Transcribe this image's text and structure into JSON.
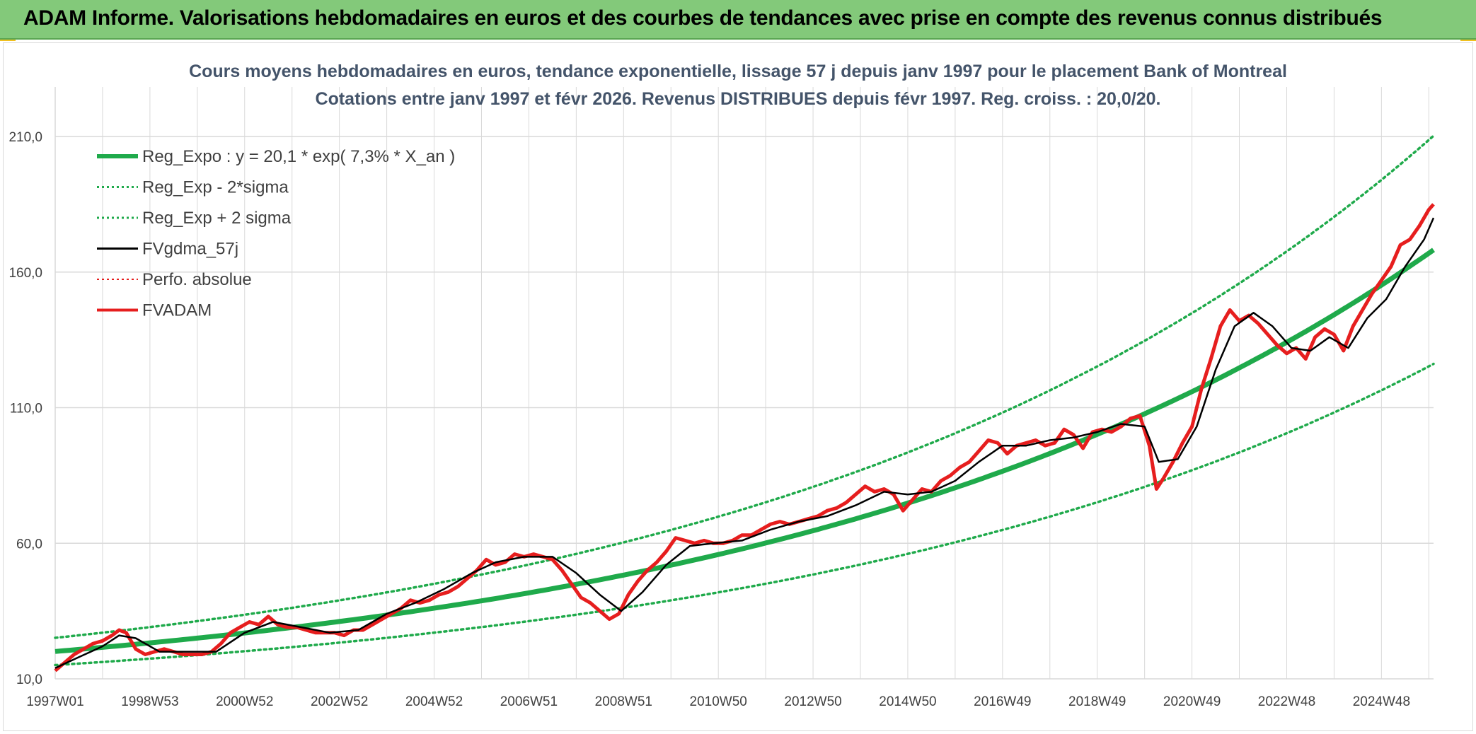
{
  "header": {
    "title": "ADAM Informe. Valorisations hebdomadaires en euros et des courbes de tendances avec prise en compte des revenus connus distribués"
  },
  "chart_data": {
    "type": "line",
    "title": "Cours moyens hebdomadaires en euros, tendance exponentielle, lissage 57 j depuis janv 1997 pour le placement Bank of Montreal",
    "subtitle": "Cotations entre janv 1997 et févr 2026. Revenus DISTRIBUES depuis févr 1997. Reg. croiss. : 20,0/20.",
    "xlabel": "",
    "ylabel": "",
    "ylim": [
      10,
      210
    ],
    "xlim": [
      1997.0,
      2026.1
    ],
    "grid": true,
    "legend_placement": "top-left",
    "y_ticks": [
      "10,0",
      "60,0",
      "110,0",
      "160,0",
      "210,0"
    ],
    "y_tick_values": [
      10,
      60,
      110,
      160,
      210
    ],
    "x_ticks": [
      "1997W01",
      "1998W53",
      "2000W52",
      "2002W52",
      "2004W52",
      "2006W51",
      "2008W51",
      "2010W50",
      "2012W50",
      "2014W50",
      "2016W49",
      "2018W49",
      "2020W49",
      "2022W48",
      "2024W48"
    ],
    "x_tick_years": [
      1997.0,
      1999.0,
      2001.0,
      2003.0,
      2005.0,
      2007.0,
      2009.0,
      2011.0,
      2013.0,
      2015.0,
      2017.0,
      2019.0,
      2021.0,
      2023.0,
      2025.0
    ],
    "colors": {
      "reg_expo": "#1faa4b",
      "sigma": "#1faa4b",
      "fvgdma": "#000000",
      "perfo": "#e61e1e",
      "fvadam": "#e61e1e",
      "grid": "#d9d9d9",
      "title": "#44546a"
    },
    "regression": {
      "a": 20.1,
      "rate": 0.073,
      "sigma_factor": 0.25
    },
    "legend": [
      {
        "label": "Reg_Expo : y = 20,1 * exp( 7,3% *  X_an )",
        "color": "#1faa4b",
        "style": "solid",
        "width": 6
      },
      {
        "label": "Reg_Exp - 2*sigma",
        "color": "#1faa4b",
        "style": "dotted",
        "width": 3
      },
      {
        "label": "Reg_Exp + 2 sigma",
        "color": "#1faa4b",
        "style": "dotted",
        "width": 3
      },
      {
        "label": "FVgdma_57j",
        "color": "#000000",
        "style": "solid",
        "width": 3
      },
      {
        "label": "Perfo. absolue",
        "color": "#e61e1e",
        "style": "dotted",
        "width": 2
      },
      {
        "label": "FVADAM",
        "color": "#e61e1e",
        "style": "solid",
        "width": 4
      }
    ],
    "series": [
      {
        "name": "FVADAM",
        "x": [
          1997.0,
          1997.2,
          1997.4,
          1997.6,
          1997.8,
          1998.0,
          1998.2,
          1998.35,
          1998.5,
          1998.7,
          1998.9,
          1999.1,
          1999.3,
          1999.5,
          1999.7,
          1999.9,
          2000.1,
          2000.3,
          2000.5,
          2000.7,
          2000.9,
          2001.1,
          2001.3,
          2001.5,
          2001.7,
          2001.9,
          2002.1,
          2002.3,
          2002.5,
          2002.7,
          2002.9,
          2003.1,
          2003.3,
          2003.5,
          2003.7,
          2003.9,
          2004.1,
          2004.3,
          2004.5,
          2004.7,
          2004.9,
          2005.1,
          2005.3,
          2005.5,
          2005.7,
          2005.9,
          2006.1,
          2006.3,
          2006.5,
          2006.7,
          2006.9,
          2007.1,
          2007.3,
          2007.5,
          2007.7,
          2007.9,
          2008.1,
          2008.3,
          2008.5,
          2008.7,
          2008.9,
          2009.1,
          2009.3,
          2009.5,
          2009.7,
          2009.9,
          2010.1,
          2010.3,
          2010.5,
          2010.7,
          2010.9,
          2011.1,
          2011.3,
          2011.5,
          2011.7,
          2011.9,
          2012.1,
          2012.3,
          2012.5,
          2012.7,
          2012.9,
          2013.1,
          2013.3,
          2013.5,
          2013.7,
          2013.9,
          2014.1,
          2014.3,
          2014.5,
          2014.7,
          2014.9,
          2015.1,
          2015.3,
          2015.5,
          2015.7,
          2015.9,
          2016.1,
          2016.3,
          2016.5,
          2016.7,
          2016.9,
          2017.1,
          2017.3,
          2017.5,
          2017.7,
          2017.9,
          2018.1,
          2018.3,
          2018.5,
          2018.7,
          2018.9,
          2019.1,
          2019.3,
          2019.5,
          2019.7,
          2019.9,
          2020.1,
          2020.25,
          2020.4,
          2020.6,
          2020.8,
          2021.0,
          2021.2,
          2021.4,
          2021.6,
          2021.8,
          2022.0,
          2022.2,
          2022.4,
          2022.6,
          2022.8,
          2023.0,
          2023.2,
          2023.4,
          2023.6,
          2023.8,
          2024.0,
          2024.2,
          2024.4,
          2024.6,
          2024.8,
          2025.0,
          2025.2,
          2025.4,
          2025.6,
          2025.8,
          2026.0,
          2026.1
        ],
        "values": [
          13,
          16,
          19,
          21,
          23,
          24,
          26,
          28,
          27,
          21,
          19,
          20,
          21,
          20,
          19,
          19,
          19,
          20,
          23,
          27,
          29,
          31,
          30,
          33,
          30,
          29,
          29,
          28,
          27,
          27,
          27,
          26,
          28,
          28,
          30,
          32,
          34,
          36,
          39,
          38,
          39,
          41,
          42,
          44,
          47,
          50,
          54,
          52,
          53,
          56,
          55,
          56,
          55,
          54,
          50,
          45,
          40,
          38,
          35,
          32,
          34,
          41,
          46,
          50,
          53,
          57,
          62,
          61,
          60,
          61,
          60,
          60,
          61,
          63,
          63,
          65,
          67,
          68,
          67,
          68,
          69,
          70,
          72,
          73,
          75,
          78,
          81,
          79,
          80,
          78,
          72,
          76,
          80,
          79,
          83,
          85,
          88,
          90,
          94,
          98,
          97,
          93,
          96,
          97,
          98,
          96,
          97,
          102,
          100,
          95,
          101,
          102,
          101,
          103,
          106,
          107,
          96,
          80,
          84,
          90,
          97,
          103,
          117,
          128,
          140,
          146,
          142,
          144,
          141,
          137,
          133,
          130,
          132,
          128,
          136,
          139,
          137,
          131,
          140,
          146,
          152,
          157,
          162,
          170,
          172,
          177,
          183,
          185
        ]
      },
      {
        "name": "FVgdma_57j",
        "x": [
          1997.0,
          1997.5,
          1998.0,
          1998.35,
          1998.7,
          1999.2,
          1999.8,
          2000.4,
          2001.0,
          2001.6,
          2002.2,
          2002.8,
          2003.4,
          2004.0,
          2004.6,
          2005.2,
          2005.8,
          2006.3,
          2006.9,
          2007.5,
          2008.0,
          2008.5,
          2008.95,
          2009.4,
          2009.9,
          2010.4,
          2010.9,
          2011.5,
          2012.1,
          2012.7,
          2013.3,
          2013.9,
          2014.5,
          2015.0,
          2015.5,
          2016.0,
          2016.5,
          2017.0,
          2017.5,
          2018.0,
          2018.5,
          2019.0,
          2019.5,
          2020.0,
          2020.3,
          2020.7,
          2021.1,
          2021.5,
          2021.9,
          2022.3,
          2022.7,
          2023.1,
          2023.5,
          2023.9,
          2024.3,
          2024.7,
          2025.1,
          2025.5,
          2025.9,
          2026.1
        ],
        "values": [
          14,
          18,
          22,
          26,
          25,
          20,
          20,
          20,
          27,
          31,
          29,
          27,
          28,
          34,
          38,
          43,
          49,
          53,
          55,
          55,
          49,
          41,
          35,
          42,
          52,
          59,
          60,
          61,
          65,
          68,
          70,
          74,
          79,
          78,
          79,
          83,
          90,
          96,
          96,
          98,
          99,
          101,
          104,
          103,
          90,
          91,
          103,
          124,
          140,
          145,
          140,
          132,
          131,
          136,
          132,
          143,
          150,
          162,
          172,
          180
        ]
      }
    ]
  }
}
